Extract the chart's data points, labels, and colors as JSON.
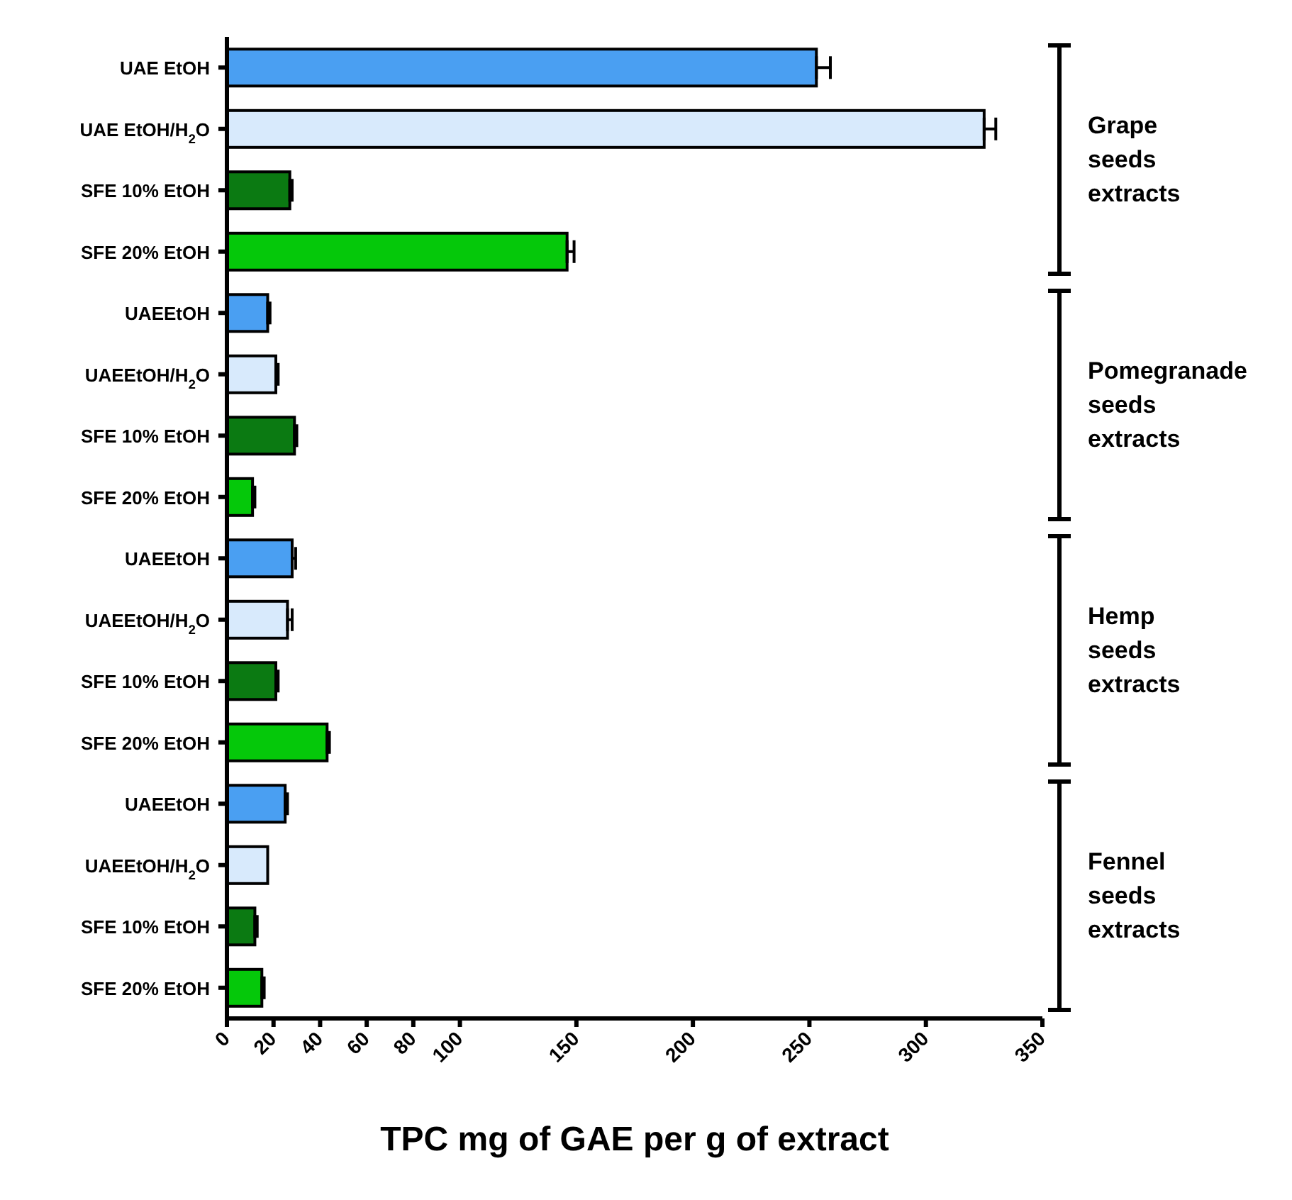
{
  "chart_data": {
    "type": "bar",
    "orientation": "horizontal",
    "xlabel": "TPC mg of GAE per g of extract",
    "categories": [
      "UAE EtOH",
      "UAE EtOH/H$_{2}$O",
      "SFE 10% EtOH",
      "SFE 20% EtOH",
      "UAEEtOH",
      "UAEEtOH/H$_{2}$O",
      "SFE 10% EtOH",
      "SFE 20% EtOH",
      "UAEEtOH",
      "UAEEtOH/H$_{2}$O",
      "SFE 10% EtOH",
      "SFE 20% EtOH",
      "UAEEtOH",
      "UAEEtOH/H$_{2}$O",
      "SFE 10% EtOH",
      "SFE 20% EtOH"
    ],
    "values": [
      253,
      325,
      27,
      146,
      17.5,
      21,
      29,
      11,
      28,
      26,
      21,
      43,
      25,
      17.5,
      12,
      15
    ],
    "errors": [
      [
        253,
        259
      ],
      [
        325,
        330
      ],
      [
        27,
        28
      ],
      [
        146,
        149
      ],
      [
        17.5,
        18.5
      ],
      [
        21,
        22
      ],
      [
        29,
        30
      ],
      [
        11,
        12
      ],
      [
        28,
        29.5
      ],
      [
        26,
        28
      ],
      [
        21,
        22
      ],
      [
        43,
        44
      ],
      [
        25,
        26
      ],
      null,
      [
        12,
        13
      ],
      [
        15,
        16
      ]
    ],
    "colors": [
      "#4a9ff2",
      "#d8eafc",
      "#0b7a12",
      "#05c80a",
      "#4a9ff2",
      "#d8eafc",
      "#0b7a12",
      "#05c80a",
      "#4a9ff2",
      "#d8eafc",
      "#0b7a12",
      "#05c80a",
      "#4a9ff2",
      "#d8eafc",
      "#0b7a12",
      "#05c80a"
    ],
    "xlim": [
      0,
      350
    ],
    "xticks": [
      0,
      20,
      40,
      60,
      80,
      100,
      150,
      200,
      250,
      300,
      350
    ],
    "grid": false,
    "legend": false,
    "annotations": [
      "Grape seeds extracts",
      "Pomegranade seeds extracts",
      "Hemp seeds extracts",
      "Fennel seeds extracts"
    ]
  }
}
